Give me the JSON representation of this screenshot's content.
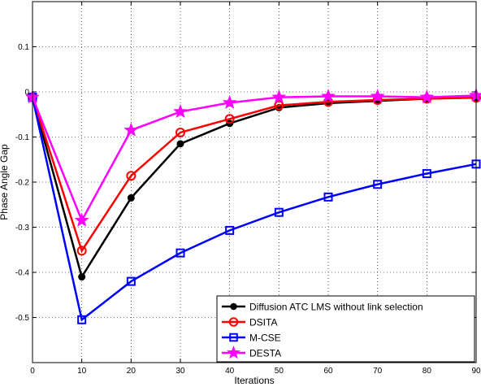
{
  "chart_data": {
    "type": "line",
    "title": "",
    "xlabel": "Iterations",
    "ylabel": "Phase Angle Gap",
    "xlim": [
      0,
      90
    ],
    "ylim": [
      -0.6,
      0.2
    ],
    "grid": true,
    "legend_position": "bottom-right",
    "x_ticks": [
      0,
      10,
      20,
      30,
      40,
      50,
      60,
      70,
      80,
      90
    ],
    "x_tick_labels": [
      "0",
      "10",
      "20",
      "30",
      "40",
      "50",
      "60",
      "70",
      "80",
      "90"
    ],
    "y_ticks": [
      -0.5,
      -0.4,
      -0.3,
      -0.2,
      -0.1,
      0,
      0.1
    ],
    "y_tick_labels": [
      "-0.5",
      "-0.4",
      "-0.3",
      "-0.2",
      "-0.1",
      "0",
      "0.1"
    ],
    "x": [
      0,
      10,
      20,
      30,
      40,
      50,
      60,
      70,
      80,
      90
    ],
    "series": [
      {
        "name": "Diffusion ATC LMS without link selection",
        "color": "#000000",
        "marker": "filled-circle",
        "values": [
          -0.012,
          -0.41,
          -0.235,
          -0.115,
          -0.07,
          -0.035,
          -0.025,
          -0.02,
          -0.015,
          -0.012
        ]
      },
      {
        "name": "DSITA",
        "color": "#ff0000",
        "marker": "circle",
        "values": [
          -0.012,
          -0.352,
          -0.186,
          -0.09,
          -0.06,
          -0.03,
          -0.022,
          -0.018,
          -0.015,
          -0.013
        ]
      },
      {
        "name": "M-CSE",
        "color": "#0000ff",
        "marker": "square",
        "values": [
          -0.012,
          -0.505,
          -0.42,
          -0.357,
          -0.307,
          -0.267,
          -0.233,
          -0.205,
          -0.181,
          -0.16
        ]
      },
      {
        "name": "DESTA",
        "color": "#ff00ff",
        "marker": "star",
        "values": [
          -0.012,
          -0.285,
          -0.085,
          -0.044,
          -0.024,
          -0.012,
          -0.01,
          -0.01,
          -0.012,
          -0.008
        ]
      }
    ]
  }
}
